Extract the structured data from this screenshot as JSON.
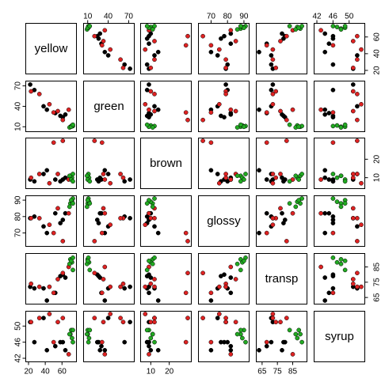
{
  "chart_data": {
    "type": "scatter",
    "title": "",
    "variables": [
      "yellow",
      "green",
      "brown",
      "glossy",
      "transp",
      "syrup"
    ],
    "axes": [
      {
        "range": [
          20,
          73
        ],
        "ticks": [
          20,
          40,
          60
        ],
        "tick_labels": [
          "20",
          "40",
          "60"
        ]
      },
      {
        "range": [
          8,
          73
        ],
        "ticks": [
          10,
          40,
          70
        ],
        "tick_labels": [
          "10",
          "40",
          "70"
        ]
      },
      {
        "range": [
          6,
          30
        ],
        "ticks": [
          10,
          20
        ],
        "tick_labels": [
          "10",
          "20"
        ]
      },
      {
        "range": [
          64,
          91
        ],
        "ticks": [
          70,
          80,
          90
        ],
        "tick_labels": [
          "70",
          "80",
          "90"
        ]
      },
      {
        "range": [
          63,
          92
        ],
        "ticks": [
          65,
          75,
          85
        ],
        "tick_labels": [
          "65",
          "75",
          "85"
        ]
      },
      {
        "range": [
          42,
          53
        ],
        "ticks": [
          42,
          46,
          50
        ],
        "tick_labels": [
          "42",
          "46",
          "50"
        ]
      }
    ],
    "tick_placement": {
      "0": [
        "bottom",
        "right"
      ],
      "1": [
        "top",
        "left"
      ],
      "2": [
        "bottom",
        "right"
      ],
      "3": [
        "top",
        "left"
      ],
      "4": [
        "bottom",
        "right"
      ],
      "5": [
        "top",
        "left"
      ]
    },
    "groups": [
      {
        "name": "",
        "color": "#000000"
      },
      {
        "name": "",
        "color": "#dd2222"
      },
      {
        "name": "",
        "color": "#22aa22"
      }
    ],
    "points": [
      {
        "group": 0,
        "values": [
          22,
          72,
          9,
          79,
          72,
          51
        ]
      },
      {
        "group": 0,
        "values": [
          27,
          64,
          8,
          80,
          71,
          46
        ]
      },
      {
        "group": 0,
        "values": [
          52,
          30,
          9,
          82,
          68,
          45
        ]
      },
      {
        "group": 0,
        "values": [
          58,
          26,
          8,
          76,
          79,
          46
        ]
      },
      {
        "group": 0,
        "values": [
          61,
          24,
          9,
          78,
          80,
          46
        ]
      },
      {
        "group": 0,
        "values": [
          64,
          28,
          10,
          82,
          78,
          44
        ]
      },
      {
        "group": 0,
        "values": [
          38,
          40,
          12,
          74,
          71,
          52
        ]
      },
      {
        "group": 0,
        "values": [
          42,
          35,
          14,
          70,
          63,
          44
        ]
      },
      {
        "group": 1,
        "values": [
          23,
          62,
          10,
          79,
          74,
          51
        ]
      },
      {
        "group": 1,
        "values": [
          33,
          58,
          12,
          79,
          72,
          52
        ]
      },
      {
        "group": 1,
        "values": [
          50,
          31,
          29,
          70,
          68,
          46
        ]
      },
      {
        "group": 1,
        "values": [
          55,
          33,
          12,
          85,
          77,
          51
        ]
      },
      {
        "group": 1,
        "values": [
          61,
          20,
          30,
          65,
          81,
          52
        ]
      },
      {
        "group": 1,
        "values": [
          45,
          43,
          7,
          75,
          72,
          53
        ]
      },
      {
        "group": 1,
        "values": [
          68,
          35,
          9,
          82,
          85,
          43
        ]
      },
      {
        "group": 2,
        "values": [
          70,
          10,
          11,
          88,
          90,
          48
        ]
      },
      {
        "group": 2,
        "values": [
          72,
          12,
          10,
          89,
          88,
          47
        ]
      },
      {
        "group": 2,
        "values": [
          73,
          11,
          12,
          91,
          91,
          46
        ]
      },
      {
        "group": 2,
        "values": [
          69,
          9,
          11,
          86,
          87,
          48
        ]
      },
      {
        "group": 2,
        "values": [
          71,
          10,
          9,
          90,
          89,
          49
        ]
      },
      {
        "group": 2,
        "values": [
          73,
          13,
          8,
          88,
          83,
          49
        ]
      }
    ]
  }
}
